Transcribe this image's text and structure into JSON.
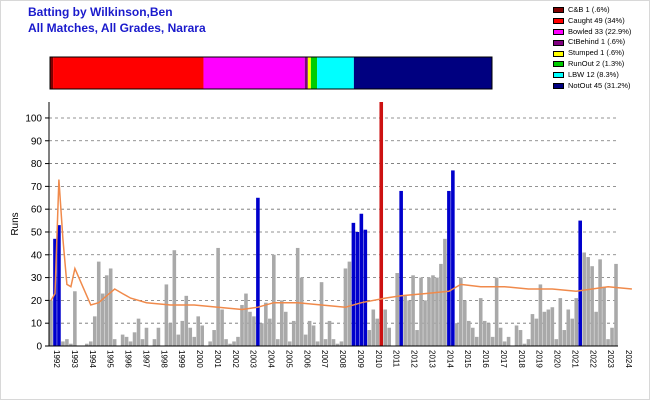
{
  "window": {
    "title_line1": "Batting by Wilkinson,Ben",
    "title_line2": "All Matches, All Grades, Narara"
  },
  "colors": {
    "title": "#1a1acc",
    "bar_normal": "#a9a9a9",
    "bar_not_out": "#0000cc",
    "bar_highlight": "#cc1111",
    "average_line": "#f08a4b"
  },
  "dismissals": [
    {
      "label": "C&B 1 (.6%)",
      "count": 1,
      "color": "#800000"
    },
    {
      "label": "Caught 49 (34%)",
      "count": 49,
      "color": "#ff0000"
    },
    {
      "label": "Bowled 33 (22.9%)",
      "count": 33,
      "color": "#ff00ff"
    },
    {
      "label": "CtBehind 1 (.6%)",
      "count": 1,
      "color": "#800080"
    },
    {
      "label": "Stumped 1 (.6%)",
      "count": 1,
      "color": "#ffff00"
    },
    {
      "label": "RunOut 2 (1.3%)",
      "count": 2,
      "color": "#00cc00"
    },
    {
      "label": "LBW 12 (8.3%)",
      "count": 12,
      "color": "#00ffff"
    },
    {
      "label": "NotOut 45 (31.2%)",
      "count": 45,
      "color": "#000080"
    }
  ],
  "chart_data": {
    "type": "bar",
    "ylabel": "Runs",
    "xlabel": "",
    "ylim": [
      0,
      107
    ],
    "yticks": [
      0,
      10,
      20,
      30,
      40,
      50,
      60,
      70,
      80,
      90,
      100
    ],
    "grid": true,
    "legend_position": "top-right",
    "year_labels": [
      "1992",
      "1993",
      "1994",
      "1995",
      "1996",
      "1997",
      "1998",
      "1999",
      "2000",
      "2001",
      "2002",
      "2003",
      "2004",
      "2005",
      "2006",
      "2007",
      "2008",
      "2009",
      "2010",
      "2011",
      "2012",
      "2013",
      "2014",
      "2015",
      "2016",
      "2017",
      "2018",
      "2019",
      "2020",
      "2021",
      "2022",
      "2023",
      "2024"
    ],
    "innings": [
      {
        "runs": 20,
        "kind": "out"
      },
      {
        "runs": 47,
        "kind": "notout"
      },
      {
        "runs": 53,
        "kind": "notout"
      },
      {
        "runs": 2,
        "kind": "out"
      },
      {
        "runs": 3,
        "kind": "out"
      },
      {
        "runs": 1,
        "kind": "out"
      },
      {
        "runs": 24,
        "kind": "out"
      },
      {
        "runs": 0,
        "kind": "out"
      },
      {
        "runs": 0,
        "kind": "out"
      },
      {
        "runs": 1,
        "kind": "out"
      },
      {
        "runs": 2,
        "kind": "out"
      },
      {
        "runs": 13,
        "kind": "out"
      },
      {
        "runs": 37,
        "kind": "out"
      },
      {
        "runs": 23,
        "kind": "out"
      },
      {
        "runs": 31,
        "kind": "out"
      },
      {
        "runs": 34,
        "kind": "out"
      },
      {
        "runs": 3,
        "kind": "out"
      },
      {
        "runs": 0,
        "kind": "out"
      },
      {
        "runs": 5,
        "kind": "out"
      },
      {
        "runs": 4,
        "kind": "out"
      },
      {
        "runs": 2,
        "kind": "out"
      },
      {
        "runs": 6,
        "kind": "out"
      },
      {
        "runs": 12,
        "kind": "out"
      },
      {
        "runs": 3,
        "kind": "out"
      },
      {
        "runs": 8,
        "kind": "out"
      },
      {
        "runs": 0,
        "kind": "out"
      },
      {
        "runs": 3,
        "kind": "out"
      },
      {
        "runs": 8,
        "kind": "out"
      },
      {
        "runs": 0,
        "kind": "out"
      },
      {
        "runs": 27,
        "kind": "out"
      },
      {
        "runs": 10,
        "kind": "out"
      },
      {
        "runs": 42,
        "kind": "out"
      },
      {
        "runs": 5,
        "kind": "out"
      },
      {
        "runs": 11,
        "kind": "out"
      },
      {
        "runs": 22,
        "kind": "out"
      },
      {
        "runs": 8,
        "kind": "out"
      },
      {
        "runs": 4,
        "kind": "out"
      },
      {
        "runs": 13,
        "kind": "out"
      },
      {
        "runs": 9,
        "kind": "out"
      },
      {
        "runs": 0,
        "kind": "out"
      },
      {
        "runs": 2,
        "kind": "out"
      },
      {
        "runs": 7,
        "kind": "out"
      },
      {
        "runs": 43,
        "kind": "out"
      },
      {
        "runs": 16,
        "kind": "out"
      },
      {
        "runs": 3,
        "kind": "out"
      },
      {
        "runs": 1,
        "kind": "out"
      },
      {
        "runs": 2,
        "kind": "out"
      },
      {
        "runs": 4,
        "kind": "out"
      },
      {
        "runs": 18,
        "kind": "out"
      },
      {
        "runs": 23,
        "kind": "out"
      },
      {
        "runs": 15,
        "kind": "out"
      },
      {
        "runs": 13,
        "kind": "out"
      },
      {
        "runs": 65,
        "kind": "notout"
      },
      {
        "runs": 10,
        "kind": "out"
      },
      {
        "runs": 19,
        "kind": "out"
      },
      {
        "runs": 12,
        "kind": "out"
      },
      {
        "runs": 40,
        "kind": "out"
      },
      {
        "runs": 3,
        "kind": "out"
      },
      {
        "runs": 20,
        "kind": "out"
      },
      {
        "runs": 15,
        "kind": "out"
      },
      {
        "runs": 2,
        "kind": "out"
      },
      {
        "runs": 11,
        "kind": "out"
      },
      {
        "runs": 43,
        "kind": "out"
      },
      {
        "runs": 30,
        "kind": "out"
      },
      {
        "runs": 5,
        "kind": "out"
      },
      {
        "runs": 11,
        "kind": "out"
      },
      {
        "runs": 9,
        "kind": "out"
      },
      {
        "runs": 2,
        "kind": "out"
      },
      {
        "runs": 28,
        "kind": "out"
      },
      {
        "runs": 3,
        "kind": "out"
      },
      {
        "runs": 11,
        "kind": "out"
      },
      {
        "runs": 3,
        "kind": "out"
      },
      {
        "runs": 1,
        "kind": "out"
      },
      {
        "runs": 2,
        "kind": "out"
      },
      {
        "runs": 34,
        "kind": "out"
      },
      {
        "runs": 37,
        "kind": "out"
      },
      {
        "runs": 54,
        "kind": "notout"
      },
      {
        "runs": 50,
        "kind": "notout"
      },
      {
        "runs": 58,
        "kind": "notout"
      },
      {
        "runs": 51,
        "kind": "notout"
      },
      {
        "runs": 7,
        "kind": "out"
      },
      {
        "runs": 16,
        "kind": "out"
      },
      {
        "runs": 12,
        "kind": "out"
      },
      {
        "runs": 107,
        "kind": "highlight"
      },
      {
        "runs": 16,
        "kind": "out"
      },
      {
        "runs": 8,
        "kind": "out"
      },
      {
        "runs": 0,
        "kind": "out"
      },
      {
        "runs": 32,
        "kind": "out"
      },
      {
        "runs": 68,
        "kind": "notout"
      },
      {
        "runs": 22,
        "kind": "out"
      },
      {
        "runs": 20,
        "kind": "out"
      },
      {
        "runs": 31,
        "kind": "out"
      },
      {
        "runs": 7,
        "kind": "out"
      },
      {
        "runs": 30,
        "kind": "out"
      },
      {
        "runs": 20,
        "kind": "out"
      },
      {
        "runs": 30,
        "kind": "out"
      },
      {
        "runs": 31,
        "kind": "out"
      },
      {
        "runs": 30,
        "kind": "out"
      },
      {
        "runs": 36,
        "kind": "out"
      },
      {
        "runs": 47,
        "kind": "out"
      },
      {
        "runs": 68,
        "kind": "notout"
      },
      {
        "runs": 77,
        "kind": "notout"
      },
      {
        "runs": 10,
        "kind": "out"
      },
      {
        "runs": 30,
        "kind": "out"
      },
      {
        "runs": 20,
        "kind": "out"
      },
      {
        "runs": 11,
        "kind": "out"
      },
      {
        "runs": 8,
        "kind": "out"
      },
      {
        "runs": 4,
        "kind": "out"
      },
      {
        "runs": 21,
        "kind": "out"
      },
      {
        "runs": 11,
        "kind": "out"
      },
      {
        "runs": 10,
        "kind": "out"
      },
      {
        "runs": 4,
        "kind": "out"
      },
      {
        "runs": 30,
        "kind": "out"
      },
      {
        "runs": 8,
        "kind": "out"
      },
      {
        "runs": 2,
        "kind": "out"
      },
      {
        "runs": 4,
        "kind": "out"
      },
      {
        "runs": 0,
        "kind": "out"
      },
      {
        "runs": 9,
        "kind": "out"
      },
      {
        "runs": 7,
        "kind": "out"
      },
      {
        "runs": 1,
        "kind": "out"
      },
      {
        "runs": 3,
        "kind": "out"
      },
      {
        "runs": 14,
        "kind": "out"
      },
      {
        "runs": 12,
        "kind": "out"
      },
      {
        "runs": 27,
        "kind": "out"
      },
      {
        "runs": 15,
        "kind": "out"
      },
      {
        "runs": 16,
        "kind": "out"
      },
      {
        "runs": 17,
        "kind": "out"
      },
      {
        "runs": 3,
        "kind": "out"
      },
      {
        "runs": 21,
        "kind": "out"
      },
      {
        "runs": 7,
        "kind": "out"
      },
      {
        "runs": 16,
        "kind": "out"
      },
      {
        "runs": 12,
        "kind": "out"
      },
      {
        "runs": 21,
        "kind": "out"
      },
      {
        "runs": 55,
        "kind": "notout"
      },
      {
        "runs": 41,
        "kind": "out"
      },
      {
        "runs": 39,
        "kind": "out"
      },
      {
        "runs": 35,
        "kind": "out"
      },
      {
        "runs": 15,
        "kind": "out"
      },
      {
        "runs": 38,
        "kind": "out"
      },
      {
        "runs": 26,
        "kind": "out"
      },
      {
        "runs": 3,
        "kind": "out"
      },
      {
        "runs": 8,
        "kind": "out"
      },
      {
        "runs": 36,
        "kind": "out"
      }
    ],
    "average_line": [
      {
        "x": 0,
        "y": 20
      },
      {
        "x": 1,
        "y": 23
      },
      {
        "x": 2,
        "y": 73
      },
      {
        "x": 3,
        "y": 47
      },
      {
        "x": 4,
        "y": 27
      },
      {
        "x": 5,
        "y": 26
      },
      {
        "x": 6,
        "y": 34
      },
      {
        "x": 8,
        "y": 26
      },
      {
        "x": 10,
        "y": 18
      },
      {
        "x": 12,
        "y": 19
      },
      {
        "x": 14,
        "y": 22
      },
      {
        "x": 16,
        "y": 25
      },
      {
        "x": 18,
        "y": 23
      },
      {
        "x": 20,
        "y": 21
      },
      {
        "x": 24,
        "y": 19
      },
      {
        "x": 30,
        "y": 18
      },
      {
        "x": 36,
        "y": 18
      },
      {
        "x": 42,
        "y": 17
      },
      {
        "x": 48,
        "y": 16
      },
      {
        "x": 52,
        "y": 17
      },
      {
        "x": 56,
        "y": 19
      },
      {
        "x": 62,
        "y": 19
      },
      {
        "x": 68,
        "y": 18
      },
      {
        "x": 74,
        "y": 17
      },
      {
        "x": 78,
        "y": 19
      },
      {
        "x": 84,
        "y": 21
      },
      {
        "x": 88,
        "y": 22
      },
      {
        "x": 94,
        "y": 23
      },
      {
        "x": 100,
        "y": 24
      },
      {
        "x": 103,
        "y": 27
      },
      {
        "x": 108,
        "y": 26
      },
      {
        "x": 114,
        "y": 26
      },
      {
        "x": 120,
        "y": 25
      },
      {
        "x": 126,
        "y": 25
      },
      {
        "x": 132,
        "y": 24
      },
      {
        "x": 136,
        "y": 25
      },
      {
        "x": 140,
        "y": 26
      },
      {
        "x": 146,
        "y": 25
      }
    ]
  }
}
